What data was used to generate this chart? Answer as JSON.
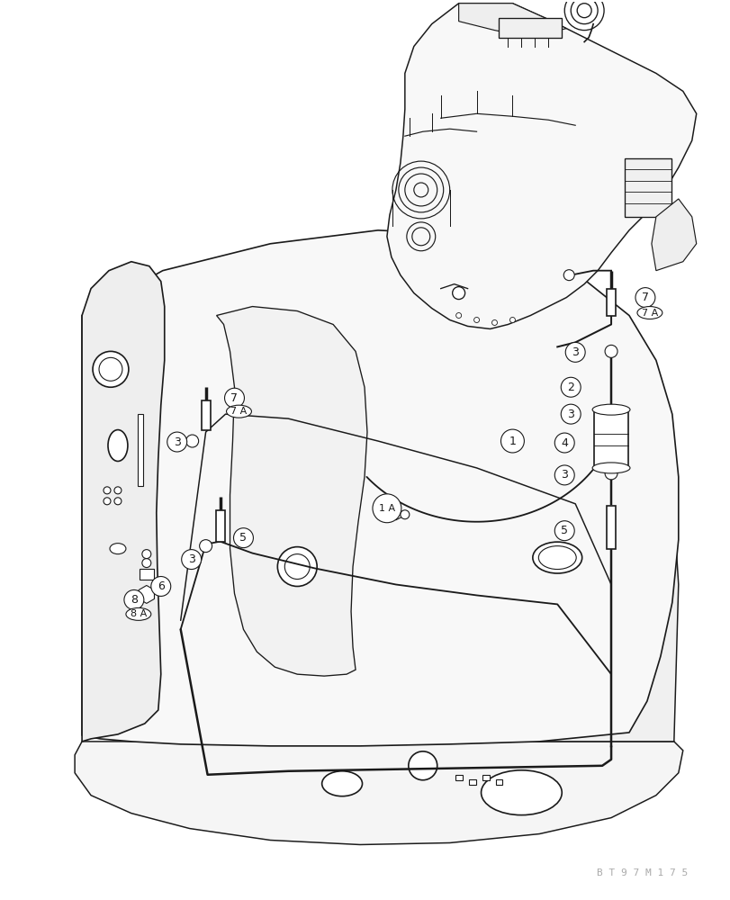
{
  "bg_color": "#ffffff",
  "line_color": "#1a1a1a",
  "watermark": "B T 9 7 M 1 7 5",
  "watermark_color": "#aaaaaa",
  "figsize": [
    8.12,
    10.0
  ],
  "dpi": 100
}
